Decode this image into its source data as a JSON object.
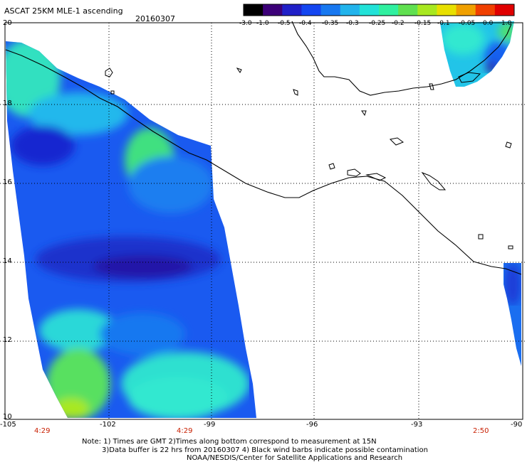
{
  "header": {
    "title": "ASCAT 25KM MLE-1 ascending",
    "date": "20160307"
  },
  "colorbar": {
    "labels": [
      "-3.0",
      "-1.0",
      "-0.5",
      "-0.4",
      "-0.35",
      "-0.3",
      "-0.25",
      "-0.2",
      "-0.15",
      "-0.1",
      "-0.05",
      "0.0",
      "1.0"
    ],
    "colors": [
      "#000000",
      "#3c0078",
      "#2020c8",
      "#1446f0",
      "#1878f0",
      "#22b4ec",
      "#22e2d8",
      "#30f0a0",
      "#60e050",
      "#a8e820",
      "#e8e000",
      "#f0a000",
      "#f04000",
      "#e00000"
    ]
  },
  "axes": {
    "lat_labels": [
      "20",
      "18",
      "16",
      "14",
      "12",
      "10"
    ],
    "lon_labels": [
      "-105",
      "-102",
      "-99",
      "-96",
      "-93",
      "-90"
    ],
    "time_labels": [
      "4:29",
      "4:29",
      "2:50"
    ]
  },
  "footer": {
    "line1": "Note: 1) Times are GMT 2)Times along bottom correspond to measurement at 15N",
    "line2": "3)Data buffer is 22 hrs from 20160307 4) Black wind barbs indicate possible contamination",
    "line3": "NOAA/NESDIS/Center for Satellite Applications and Research"
  }
}
